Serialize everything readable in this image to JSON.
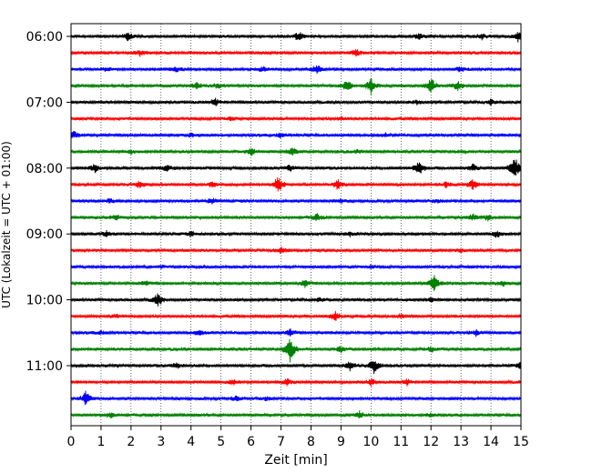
{
  "chart_data": {
    "type": "line",
    "xlabel": "Zeit  [min]",
    "ylabel": "UTC (Lokalzeit = UTC + 01:00)",
    "xlim": [
      0,
      15
    ],
    "x_ticks": [
      "0",
      "1",
      "2",
      "3",
      "4",
      "5",
      "6",
      "7",
      "8",
      "9",
      "10",
      "11",
      "12",
      "13",
      "14",
      "15"
    ],
    "y_ticks": [
      "06:00",
      "07:00",
      "08:00",
      "09:00",
      "10:00",
      "11:00"
    ],
    "grid": "vertical dotted",
    "colors": [
      "#000000",
      "#ff0000",
      "#0000ff",
      "#008000"
    ],
    "series": [
      {
        "row": 0,
        "color": "#000000",
        "events": [
          {
            "x": 1.9,
            "amp": 0.4
          },
          {
            "x": 7.6,
            "amp": 0.5
          },
          {
            "x": 11.6,
            "amp": 0.3
          },
          {
            "x": 13.7,
            "amp": 0.3
          },
          {
            "x": 14.9,
            "amp": 0.5
          }
        ]
      },
      {
        "row": 1,
        "color": "#ff0000",
        "events": [
          {
            "x": 2.3,
            "amp": 0.3
          },
          {
            "x": 9.5,
            "amp": 0.5
          }
        ]
      },
      {
        "row": 2,
        "color": "#0000ff",
        "events": [
          {
            "x": 1.2,
            "amp": 0.2
          },
          {
            "x": 3.5,
            "amp": 0.3
          },
          {
            "x": 6.4,
            "amp": 0.3
          },
          {
            "x": 8.2,
            "amp": 0.5
          },
          {
            "x": 13.0,
            "amp": 0.3
          }
        ]
      },
      {
        "row": 3,
        "color": "#008000",
        "events": [
          {
            "x": 4.2,
            "amp": 0.4
          },
          {
            "x": 4.9,
            "amp": 0.3
          },
          {
            "x": 9.2,
            "amp": 0.7
          },
          {
            "x": 10.0,
            "amp": 0.9
          },
          {
            "x": 12.0,
            "amp": 0.9
          },
          {
            "x": 12.9,
            "amp": 0.5
          }
        ]
      },
      {
        "row": 4,
        "color": "#000000",
        "events": [
          {
            "x": 4.8,
            "amp": 0.4
          },
          {
            "x": 11.5,
            "amp": 0.2
          },
          {
            "x": 14.0,
            "amp": 0.3
          }
        ]
      },
      {
        "row": 5,
        "color": "#ff0000",
        "events": [
          {
            "x": 5.3,
            "amp": 0.2
          },
          {
            "x": 9.0,
            "amp": 0.2
          }
        ]
      },
      {
        "row": 6,
        "color": "#0000ff",
        "events": [
          {
            "x": 0.1,
            "amp": 0.4
          },
          {
            "x": 4.0,
            "amp": 0.2
          },
          {
            "x": 7.0,
            "amp": 0.3
          },
          {
            "x": 10.5,
            "amp": 0.2
          }
        ]
      },
      {
        "row": 7,
        "color": "#008000",
        "events": [
          {
            "x": 2.0,
            "amp": 0.2
          },
          {
            "x": 6.0,
            "amp": 0.4
          },
          {
            "x": 7.4,
            "amp": 0.4
          },
          {
            "x": 9.5,
            "amp": 0.2
          }
        ]
      },
      {
        "row": 8,
        "color": "#000000",
        "events": [
          {
            "x": 0.8,
            "amp": 0.5
          },
          {
            "x": 3.2,
            "amp": 0.3
          },
          {
            "x": 7.3,
            "amp": 0.3
          },
          {
            "x": 11.6,
            "amp": 0.8
          },
          {
            "x": 13.4,
            "amp": 0.4
          },
          {
            "x": 14.8,
            "amp": 1.4
          }
        ]
      },
      {
        "row": 9,
        "color": "#ff0000",
        "events": [
          {
            "x": 2.3,
            "amp": 0.4
          },
          {
            "x": 4.7,
            "amp": 0.3
          },
          {
            "x": 6.9,
            "amp": 1.0
          },
          {
            "x": 8.9,
            "amp": 0.6
          },
          {
            "x": 12.5,
            "amp": 0.3
          },
          {
            "x": 13.4,
            "amp": 0.6
          }
        ]
      },
      {
        "row": 10,
        "color": "#0000ff",
        "events": [
          {
            "x": 1.3,
            "amp": 0.2
          },
          {
            "x": 4.7,
            "amp": 0.3
          },
          {
            "x": 9.0,
            "amp": 0.2
          },
          {
            "x": 12.2,
            "amp": 0.2
          }
        ]
      },
      {
        "row": 11,
        "color": "#008000",
        "events": [
          {
            "x": 1.5,
            "amp": 0.3
          },
          {
            "x": 8.2,
            "amp": 0.4
          },
          {
            "x": 13.4,
            "amp": 0.4
          },
          {
            "x": 13.9,
            "amp": 0.3
          }
        ]
      },
      {
        "row": 12,
        "color": "#000000",
        "events": [
          {
            "x": 1.2,
            "amp": 0.3
          },
          {
            "x": 4.0,
            "amp": 0.3
          },
          {
            "x": 9.3,
            "amp": 0.2
          },
          {
            "x": 14.2,
            "amp": 0.4
          }
        ]
      },
      {
        "row": 13,
        "color": "#ff0000",
        "events": [
          {
            "x": 7.0,
            "amp": 0.4
          },
          {
            "x": 13.0,
            "amp": 0.2
          }
        ]
      },
      {
        "row": 14,
        "color": "#0000ff",
        "events": [
          {
            "x": 3.0,
            "amp": 0.2
          },
          {
            "x": 10.0,
            "amp": 0.2
          }
        ]
      },
      {
        "row": 15,
        "color": "#008000",
        "events": [
          {
            "x": 2.5,
            "amp": 0.2
          },
          {
            "x": 7.8,
            "amp": 0.4
          },
          {
            "x": 12.1,
            "amp": 0.9
          },
          {
            "x": 14.4,
            "amp": 0.3
          }
        ]
      },
      {
        "row": 16,
        "color": "#000000",
        "events": [
          {
            "x": 2.9,
            "amp": 0.7
          },
          {
            "x": 8.3,
            "amp": 0.2
          },
          {
            "x": 12.0,
            "amp": 0.2
          }
        ]
      },
      {
        "row": 17,
        "color": "#ff0000",
        "events": [
          {
            "x": 1.5,
            "amp": 0.2
          },
          {
            "x": 8.8,
            "amp": 0.5
          },
          {
            "x": 11.0,
            "amp": 0.2
          }
        ]
      },
      {
        "row": 18,
        "color": "#0000ff",
        "events": [
          {
            "x": 1.0,
            "amp": 0.2
          },
          {
            "x": 4.3,
            "amp": 0.3
          },
          {
            "x": 7.3,
            "amp": 0.4
          },
          {
            "x": 13.5,
            "amp": 0.3
          }
        ]
      },
      {
        "row": 19,
        "color": "#008000",
        "events": [
          {
            "x": 7.3,
            "amp": 1.4
          },
          {
            "x": 9.0,
            "amp": 0.3
          },
          {
            "x": 12.0,
            "amp": 0.3
          }
        ]
      },
      {
        "row": 20,
        "color": "#000000",
        "events": [
          {
            "x": 3.5,
            "amp": 0.3
          },
          {
            "x": 9.3,
            "amp": 0.5
          },
          {
            "x": 10.1,
            "amp": 0.9
          },
          {
            "x": 15.0,
            "amp": 0.4
          }
        ]
      },
      {
        "row": 21,
        "color": "#ff0000",
        "events": [
          {
            "x": 5.4,
            "amp": 0.3
          },
          {
            "x": 7.2,
            "amp": 0.4
          },
          {
            "x": 10.0,
            "amp": 0.3
          },
          {
            "x": 11.2,
            "amp": 0.3
          }
        ]
      },
      {
        "row": 22,
        "color": "#0000ff",
        "events": [
          {
            "x": 0.5,
            "amp": 0.9
          },
          {
            "x": 5.5,
            "amp": 0.3
          },
          {
            "x": 6.5,
            "amp": 0.2
          }
        ]
      },
      {
        "row": 23,
        "color": "#008000",
        "events": [
          {
            "x": 1.3,
            "amp": 0.3
          },
          {
            "x": 9.6,
            "amp": 0.4
          },
          {
            "x": 12.0,
            "amp": 0.2
          }
        ]
      }
    ]
  }
}
